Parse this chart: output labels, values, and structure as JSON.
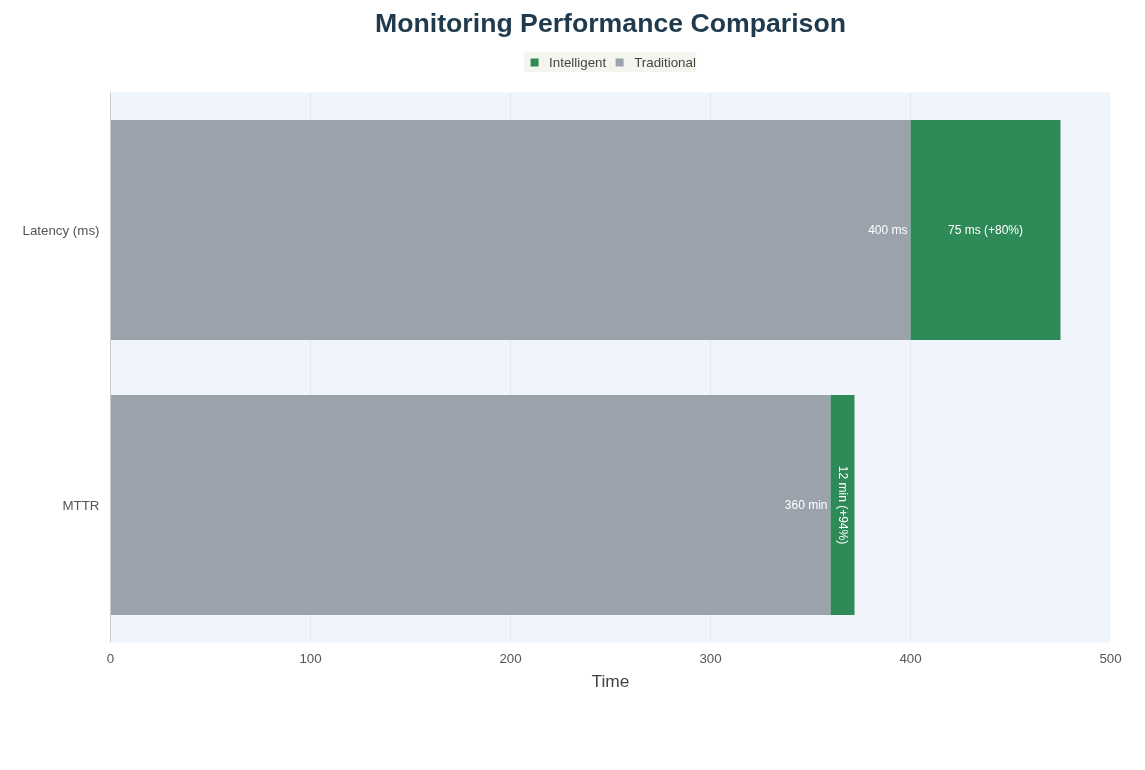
{
  "chart_data": {
    "type": "bar",
    "title": "Monitoring Performance Comparison",
    "xlabel": "Time",
    "orientation": "horizontal",
    "stacked": true,
    "categories": [
      "Latency (ms)",
      "MTTR"
    ],
    "series": [
      {
        "name": "Traditional",
        "color": "#9aa3ab",
        "values": [
          400,
          360
        ],
        "value_labels": [
          "400 ms",
          "360 min"
        ]
      },
      {
        "name": "Intelligent",
        "color": "#2e8b57",
        "values": [
          75,
          12
        ],
        "value_labels": [
          "75 ms (+80%)",
          "12 min (+94%)"
        ]
      }
    ],
    "xlim": [
      0,
      500
    ],
    "xticks": [
      0,
      100,
      200,
      300,
      400,
      500
    ],
    "grid": "x",
    "legend": "top"
  }
}
